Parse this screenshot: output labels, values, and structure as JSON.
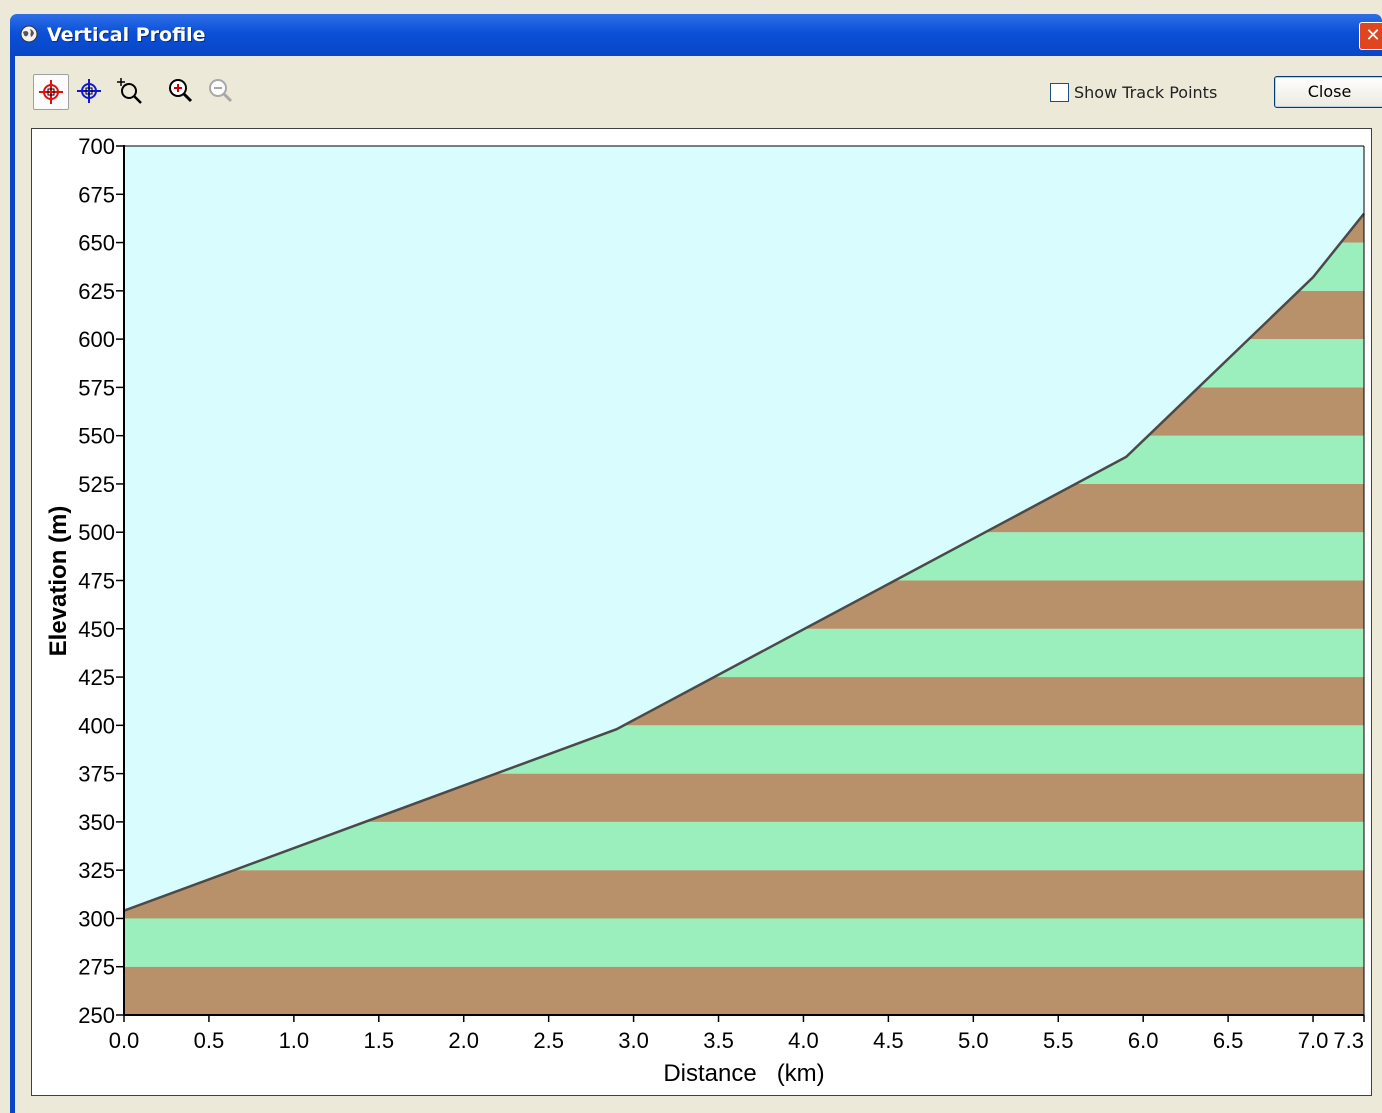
{
  "window": {
    "title": "Vertical Profile",
    "close_glyph": "✕"
  },
  "toolbar": {
    "tools": [
      {
        "name": "crosshair-red-icon",
        "active": true
      },
      {
        "name": "crosshair-blue-icon",
        "active": false
      },
      {
        "name": "zoom-box-icon",
        "active": false
      },
      {
        "name": "zoom-in-icon",
        "active": false
      },
      {
        "name": "zoom-out-icon",
        "active": false,
        "disabled": true
      }
    ],
    "show_track_points_label": "Show Track Points",
    "show_track_points_checked": false,
    "close_label": "Close"
  },
  "colors": {
    "sky": "#d9fcfe",
    "band_brown": "#b8916a",
    "band_green": "#9aefbd",
    "profile_line": "#4a4a4a",
    "title_bar": "#0b50d8"
  },
  "chart_data": {
    "type": "area",
    "xlabel": "Distance   (km)",
    "ylabel": "Elevation (m)",
    "xlim": [
      0.0,
      7.3
    ],
    "ylim": [
      250,
      700
    ],
    "x_ticks": [
      "0.0",
      "0.5",
      "1.0",
      "1.5",
      "2.0",
      "2.5",
      "3.0",
      "3.5",
      "4.0",
      "4.5",
      "5.0",
      "5.5",
      "6.0",
      "6.5",
      "7.0",
      "7.3"
    ],
    "y_ticks": [
      "250",
      "275",
      "300",
      "325",
      "350",
      "375",
      "400",
      "425",
      "450",
      "475",
      "500",
      "525",
      "550",
      "575",
      "600",
      "625",
      "650",
      "675",
      "700"
    ],
    "band_height_m": 25,
    "series": [
      {
        "x": [
          0.0,
          2.9,
          5.9,
          7.0,
          7.3
        ],
        "y": [
          304,
          398,
          539,
          632,
          665
        ]
      }
    ]
  }
}
